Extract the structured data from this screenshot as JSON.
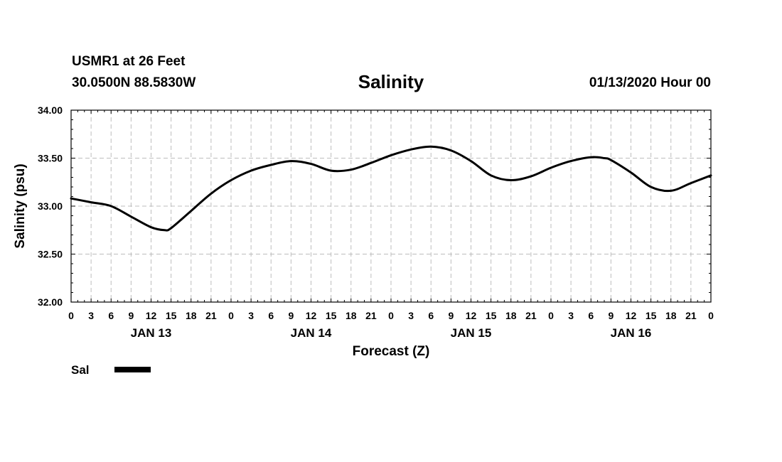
{
  "header": {
    "station": "USMR1 at 26 Feet",
    "coords": "30.0500N 88.5830W",
    "title": "Salinity",
    "timestamp": "01/13/2020 Hour 00"
  },
  "chart_data": {
    "type": "line",
    "title": "Salinity",
    "xlabel": "Forecast (Z)",
    "ylabel": "Salinity (psu)",
    "ylim": [
      32.0,
      34.0
    ],
    "yticks": [
      "32.00",
      "32.50",
      "33.00",
      "33.50",
      "34.00"
    ],
    "xlim_hours": [
      0,
      96
    ],
    "xtick_labels": [
      "0",
      "3",
      "6",
      "9",
      "12",
      "15",
      "18",
      "21",
      "0",
      "3",
      "6",
      "9",
      "12",
      "15",
      "18",
      "21",
      "0",
      "3",
      "6",
      "9",
      "12",
      "15",
      "18",
      "21",
      "0",
      "3",
      "6",
      "9",
      "12",
      "15",
      "18",
      "21",
      "0"
    ],
    "day_labels": [
      {
        "label": "JAN 13",
        "hour": 12
      },
      {
        "label": "JAN 14",
        "hour": 36
      },
      {
        "label": "JAN 15",
        "hour": 60
      },
      {
        "label": "JAN 16",
        "hour": 84
      }
    ],
    "grid": true,
    "legend": [
      {
        "name": "Sal",
        "color": "#000000"
      }
    ],
    "series": [
      {
        "name": "Sal",
        "x": [
          0,
          3,
          6,
          9,
          12,
          14,
          15,
          18,
          21,
          24,
          27,
          30,
          33,
          36,
          39,
          42,
          45,
          48,
          51,
          54,
          57,
          60,
          63,
          66,
          69,
          72,
          75,
          78,
          80,
          81,
          84,
          87,
          90,
          93,
          96
        ],
        "values": [
          33.08,
          33.04,
          33.0,
          32.89,
          32.78,
          32.75,
          32.77,
          32.95,
          33.13,
          33.27,
          33.37,
          33.43,
          33.47,
          33.44,
          33.37,
          33.38,
          33.45,
          33.53,
          33.59,
          33.62,
          33.58,
          33.47,
          33.32,
          33.27,
          33.31,
          33.4,
          33.47,
          33.51,
          33.5,
          33.48,
          33.35,
          33.2,
          33.16,
          33.24,
          33.32
        ]
      }
    ]
  }
}
